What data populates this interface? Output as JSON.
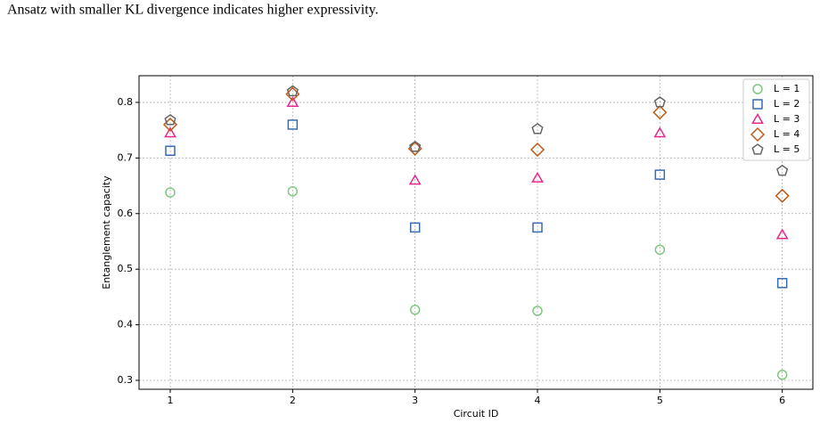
{
  "caption": "Ansatz with smaller KL divergence indicates higher expressivity.",
  "chart_data": {
    "type": "scatter",
    "x_label": "Circuit ID",
    "y_label": "Entanglement capacity",
    "x": [
      1,
      2,
      3,
      4,
      5,
      6
    ],
    "series": [
      {
        "name": "L = 1",
        "color": "#7fc97f",
        "marker": "circle",
        "values": [
          0.638,
          0.64,
          0.427,
          0.425,
          0.535,
          0.31
        ]
      },
      {
        "name": "L = 2",
        "color": "#386cb0",
        "marker": "square",
        "values": [
          0.713,
          0.76,
          0.575,
          0.575,
          0.67,
          0.475
        ]
      },
      {
        "name": "L = 3",
        "color": "#e7298a",
        "marker": "triangle",
        "values": [
          0.745,
          0.8,
          0.66,
          0.664,
          0.745,
          0.562
        ]
      },
      {
        "name": "L = 4",
        "color": "#bf5b17",
        "marker": "diamond",
        "values": [
          0.76,
          0.815,
          0.717,
          0.715,
          0.782,
          0.632
        ]
      },
      {
        "name": "L = 5",
        "color": "#666666",
        "marker": "pentagon",
        "values": [
          0.768,
          0.82,
          0.72,
          0.752,
          0.8,
          0.677
        ]
      }
    ],
    "xlim": [
      0.745,
      6.25
    ],
    "ylim": [
      0.284,
      0.848
    ],
    "xticks": [
      1,
      2,
      3,
      4,
      5,
      6
    ],
    "yticks": [
      0.3,
      0.4,
      0.5,
      0.6,
      0.7,
      0.8
    ],
    "grid": true,
    "legend": "upper right"
  }
}
